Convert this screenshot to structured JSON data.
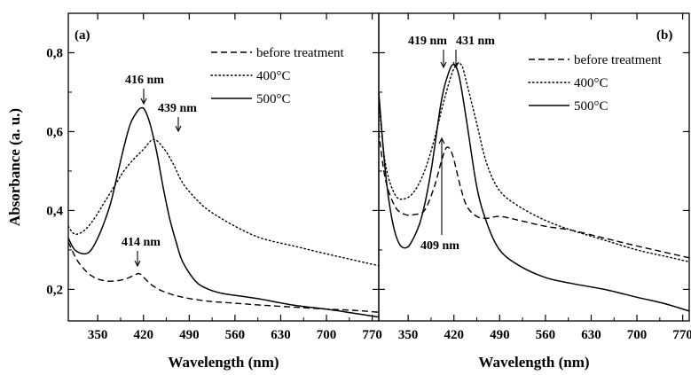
{
  "chart_data": [
    {
      "type": "line",
      "panel_label": "(a)",
      "xlabel": "Wavelength (nm)",
      "ylabel": "Absorbance (a. u.)",
      "xlim": [
        305,
        780
      ],
      "ylim": [
        0.12,
        0.9
      ],
      "xticks": [
        350,
        420,
        490,
        560,
        630,
        700,
        770
      ],
      "xtick_labels": [
        "350",
        "420",
        "490",
        "560",
        "630",
        "700",
        "770"
      ],
      "yticks": [
        0.2,
        0.4,
        0.6,
        0.8
      ],
      "ytick_labels": [
        "0,2",
        "0,4",
        "0,6",
        "0,8"
      ],
      "legend_position": "top-right",
      "series": [
        {
          "name": "before treatment",
          "dash": "dashed",
          "x": [
            305,
            320,
            340,
            360,
            380,
            395,
            405,
            412,
            416,
            422,
            432,
            450,
            480,
            520,
            560,
            600,
            650,
            700,
            740,
            780
          ],
          "y": [
            0.32,
            0.27,
            0.235,
            0.222,
            0.222,
            0.228,
            0.235,
            0.24,
            0.238,
            0.228,
            0.212,
            0.195,
            0.18,
            0.17,
            0.165,
            0.16,
            0.155,
            0.15,
            0.147,
            0.142
          ]
        },
        {
          "name": "400°C",
          "dash": "dotted",
          "x": [
            305,
            315,
            330,
            345,
            360,
            375,
            390,
            405,
            420,
            435,
            450,
            465,
            480,
            500,
            520,
            560,
            600,
            650,
            700,
            740,
            780
          ],
          "y": [
            0.36,
            0.34,
            0.35,
            0.38,
            0.42,
            0.46,
            0.5,
            0.53,
            0.555,
            0.58,
            0.56,
            0.52,
            0.47,
            0.43,
            0.4,
            0.36,
            0.33,
            0.31,
            0.29,
            0.275,
            0.26
          ]
        },
        {
          "name": "500°C",
          "dash": "solid",
          "x": [
            305,
            315,
            330,
            340,
            350,
            360,
            370,
            380,
            390,
            400,
            410,
            416,
            422,
            430,
            440,
            450,
            460,
            470,
            480,
            500,
            520,
            540,
            560,
            600,
            650,
            700,
            740,
            780
          ],
          "y": [
            0.33,
            0.3,
            0.29,
            0.3,
            0.33,
            0.37,
            0.42,
            0.49,
            0.56,
            0.62,
            0.65,
            0.66,
            0.655,
            0.62,
            0.55,
            0.46,
            0.38,
            0.32,
            0.27,
            0.22,
            0.2,
            0.19,
            0.185,
            0.175,
            0.16,
            0.15,
            0.14,
            0.13
          ]
        }
      ],
      "annotations": [
        {
          "text": "416 nm",
          "x": 416,
          "y": 0.66
        },
        {
          "text": "439 nm",
          "x": 439,
          "y": 0.58
        },
        {
          "text": "414 nm",
          "x": 414,
          "y": 0.24
        }
      ]
    },
    {
      "type": "line",
      "panel_label": "(b)",
      "xlabel": "Wavelength (nm)",
      "ylabel": "",
      "xlim": [
        305,
        780
      ],
      "ylim": [
        0.12,
        0.9
      ],
      "xticks": [
        350,
        420,
        490,
        560,
        630,
        700,
        770
      ],
      "xtick_labels": [
        "350",
        "420",
        "490",
        "560",
        "630",
        "700",
        "770"
      ],
      "yticks": [
        0.2,
        0.4,
        0.6,
        0.8
      ],
      "legend_position": "top-right",
      "series": [
        {
          "name": "before treatment",
          "dash": "dashed",
          "x": [
            305,
            315,
            330,
            345,
            360,
            375,
            390,
            400,
            409,
            418,
            430,
            440,
            455,
            470,
            490,
            520,
            560,
            600,
            650,
            700,
            740,
            780
          ],
          "y": [
            0.6,
            0.48,
            0.41,
            0.39,
            0.39,
            0.4,
            0.46,
            0.52,
            0.56,
            0.54,
            0.46,
            0.41,
            0.385,
            0.38,
            0.385,
            0.375,
            0.36,
            0.35,
            0.33,
            0.31,
            0.295,
            0.28
          ]
        },
        {
          "name": "400°C",
          "dash": "dotted",
          "x": [
            305,
            315,
            330,
            345,
            360,
            375,
            390,
            405,
            420,
            431,
            440,
            455,
            470,
            490,
            520,
            560,
            600,
            650,
            700,
            740,
            780
          ],
          "y": [
            0.68,
            0.52,
            0.44,
            0.43,
            0.45,
            0.5,
            0.58,
            0.68,
            0.76,
            0.77,
            0.72,
            0.62,
            0.52,
            0.45,
            0.41,
            0.375,
            0.35,
            0.325,
            0.3,
            0.285,
            0.27
          ]
        },
        {
          "name": "500°C",
          "dash": "solid",
          "x": [
            305,
            315,
            325,
            335,
            345,
            355,
            370,
            385,
            400,
            410,
            419,
            428,
            440,
            455,
            470,
            490,
            520,
            560,
            600,
            650,
            700,
            740,
            780
          ],
          "y": [
            0.7,
            0.5,
            0.38,
            0.32,
            0.305,
            0.32,
            0.38,
            0.5,
            0.67,
            0.74,
            0.77,
            0.74,
            0.62,
            0.46,
            0.37,
            0.3,
            0.26,
            0.23,
            0.215,
            0.2,
            0.18,
            0.165,
            0.145
          ]
        }
      ],
      "annotations": [
        {
          "text": "419 nm",
          "x": 419,
          "y": 0.77
        },
        {
          "text": "431 nm",
          "x": 431,
          "y": 0.77
        },
        {
          "text": "409 nm",
          "x": 409,
          "y": 0.56
        }
      ]
    }
  ]
}
